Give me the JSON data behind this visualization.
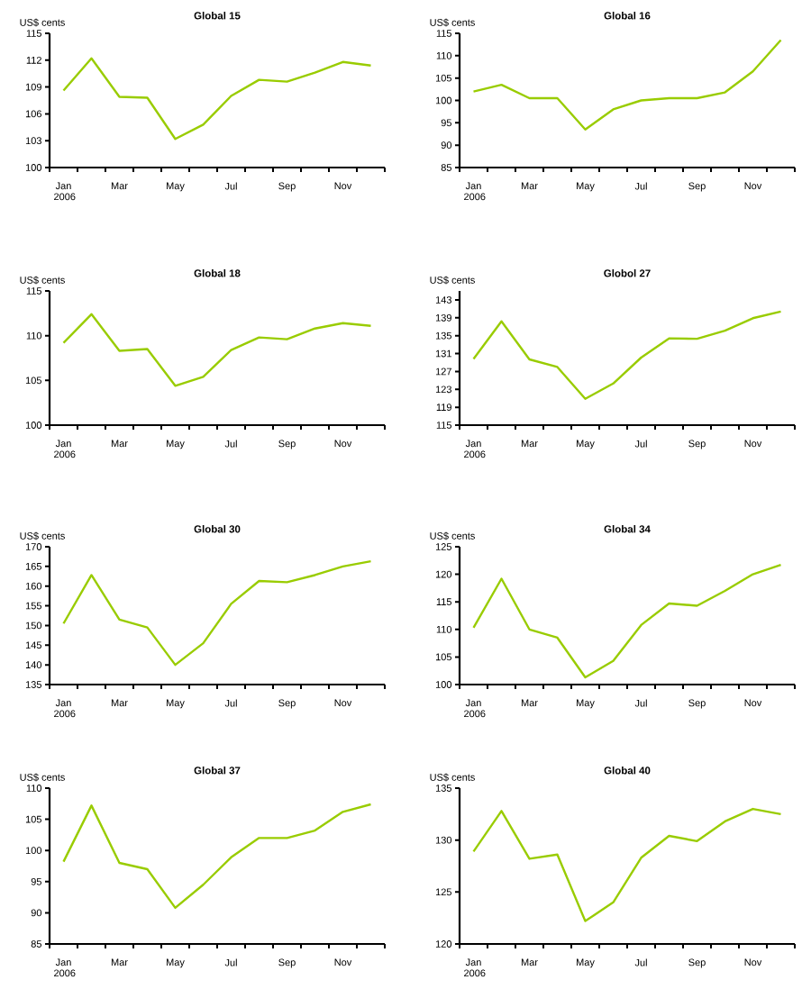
{
  "chart_data": [
    {
      "type": "line",
      "title": "Global 15",
      "ylabel": "US$ cents",
      "categories": [
        "Jan 2006",
        null,
        "Mar",
        null,
        "May",
        null,
        "Jul",
        null,
        "Sep",
        null,
        "Nov",
        null
      ],
      "color": "#99cc00",
      "values": [
        108.6,
        112.2,
        107.9,
        107.8,
        103.2,
        104.8,
        108.0,
        109.8,
        109.6,
        110.6,
        111.8,
        111.4
      ],
      "ylim": [
        100,
        115
      ],
      "yticks": [
        100,
        103,
        106,
        109,
        112,
        115
      ]
    },
    {
      "type": "line",
      "title": "Global 16",
      "ylabel": "US$ cents",
      "categories": [
        "Jan 2006",
        null,
        "Mar",
        null,
        "May",
        null,
        "Jul",
        null,
        "Sep",
        null,
        "Nov",
        null
      ],
      "color": "#99cc00",
      "values": [
        102.0,
        103.5,
        100.5,
        100.5,
        93.5,
        98.0,
        100.0,
        100.5,
        100.5,
        101.8,
        106.5,
        113.5
      ],
      "ylim": [
        85,
        115
      ],
      "yticks": [
        85,
        90,
        95,
        100,
        105,
        110,
        115
      ]
    },
    {
      "type": "line",
      "title": "Global 18",
      "ylabel": "US$ cents",
      "categories": [
        "Jan 2006",
        null,
        "Mar",
        null,
        "May",
        null,
        "Jul",
        null,
        "Sep",
        null,
        "Nov",
        null
      ],
      "color": "#99cc00",
      "values": [
        109.2,
        112.4,
        108.3,
        108.5,
        104.4,
        105.4,
        108.4,
        109.8,
        109.6,
        110.8,
        111.4,
        111.1
      ],
      "ylim": [
        100,
        115
      ],
      "yticks": [
        100,
        105,
        110,
        115
      ]
    },
    {
      "type": "line",
      "title": "Globol 27",
      "ylabel": "US$ cents",
      "categories": [
        "Jan 2006",
        null,
        "Mar",
        null,
        "May",
        null,
        "Jul",
        null,
        "Sep",
        null,
        "Nov",
        null
      ],
      "color": "#99cc00",
      "values": [
        129.8,
        138.2,
        129.7,
        128.0,
        120.9,
        124.3,
        130.1,
        134.4,
        134.3,
        136.1,
        138.9,
        140.4
      ],
      "ylim": [
        115,
        145
      ],
      "yticks": [
        115,
        119,
        123,
        127,
        131,
        135,
        139,
        143
      ]
    },
    {
      "type": "line",
      "title": "Global 30",
      "ylabel": "US$ cents",
      "categories": [
        "Jan 2006",
        null,
        "Mar",
        null,
        "May",
        null,
        "Jul",
        null,
        "Sep",
        null,
        "Nov",
        null
      ],
      "color": "#99cc00",
      "values": [
        150.5,
        162.8,
        151.5,
        149.5,
        140.0,
        145.5,
        155.5,
        161.3,
        161.0,
        162.8,
        165.0,
        166.3
      ],
      "ylim": [
        135,
        170
      ],
      "yticks": [
        135,
        140,
        145,
        150,
        155,
        160,
        165,
        170
      ]
    },
    {
      "type": "line",
      "title": "Global 34",
      "ylabel": "US$ cents",
      "categories": [
        "Jan 2006",
        null,
        "Mar",
        null,
        "May",
        null,
        "Jul",
        null,
        "Sep",
        null,
        "Nov",
        null
      ],
      "color": "#99cc00",
      "values": [
        110.3,
        119.2,
        110.0,
        108.5,
        101.3,
        104.3,
        110.8,
        114.7,
        114.3,
        117.0,
        120.0,
        121.7
      ],
      "ylim": [
        100,
        125
      ],
      "yticks": [
        100,
        105,
        110,
        115,
        120,
        125
      ]
    },
    {
      "type": "line",
      "title": "Global 37",
      "ylabel": "US$ cents",
      "categories": [
        "Jan 2006",
        null,
        "Mar",
        null,
        "May",
        null,
        "Jul",
        null,
        "Sep",
        null,
        "Nov",
        null
      ],
      "color": "#99cc00",
      "values": [
        98.2,
        107.2,
        98.0,
        97.0,
        90.8,
        94.5,
        98.9,
        102.0,
        102.0,
        103.2,
        106.2,
        107.4
      ],
      "ylim": [
        85,
        110
      ],
      "yticks": [
        85,
        90,
        95,
        100,
        105,
        110
      ]
    },
    {
      "type": "line",
      "title": "Global 40",
      "ylabel": "US$ cents",
      "categories": [
        "Jan 2006",
        null,
        "Mar",
        null,
        "May",
        null,
        "Jul",
        null,
        "Sep",
        null,
        "Nov",
        null
      ],
      "color": "#99cc00",
      "values": [
        128.9,
        132.8,
        128.2,
        128.6,
        122.2,
        124.0,
        128.3,
        130.4,
        129.9,
        131.8,
        133.0,
        132.5
      ],
      "ylim": [
        120,
        135
      ],
      "yticks": [
        120,
        125,
        130,
        135
      ]
    }
  ]
}
